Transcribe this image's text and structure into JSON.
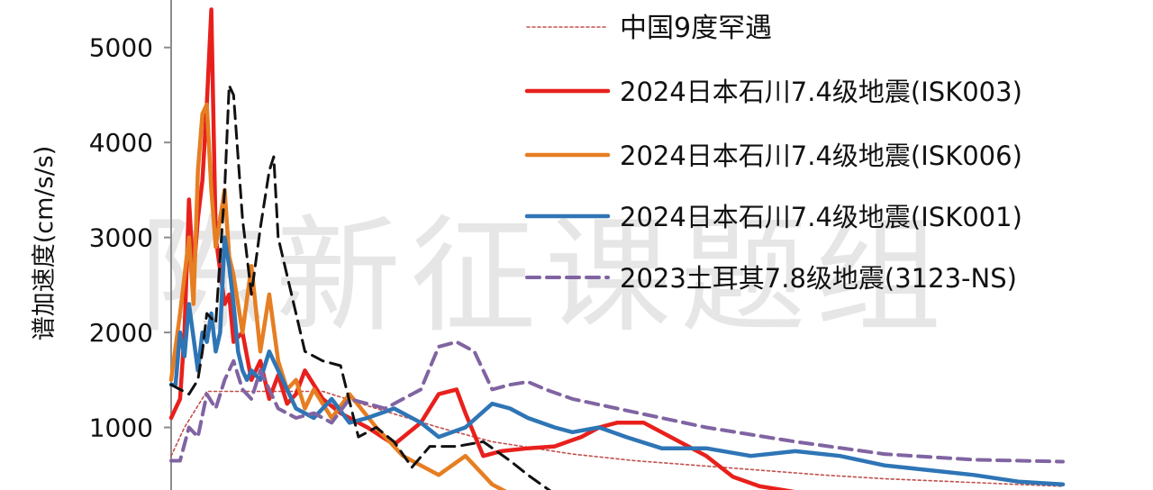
{
  "watermark": "陈新征课题组",
  "chart_data": {
    "type": "line",
    "title": "",
    "xlabel": "",
    "ylabel": "谱加速度(cm/s/s)",
    "xlim": [
      0,
      1
    ],
    "ylim": [
      0,
      5500
    ],
    "yticks": [
      "1000",
      "2000",
      "3000",
      "4000",
      "5000"
    ],
    "grid": false,
    "legend_position": "top-right",
    "series": [
      {
        "name": "中国9度罕遇",
        "color": "#c0504d",
        "style": "dotted",
        "x": [
          0.0,
          0.015,
          0.04,
          0.05,
          0.09,
          0.13,
          0.17,
          0.23,
          0.3,
          0.36,
          0.45,
          0.52,
          0.59,
          0.66,
          0.73,
          0.8,
          0.9,
          1.0
        ],
        "y": [
          700,
          1000,
          1380,
          1380,
          1380,
          1380,
          1380,
          1200,
          1000,
          850,
          720,
          650,
          600,
          550,
          500,
          460,
          420,
          380
        ]
      },
      {
        "name": "2024日本石川7.4级地震(ISK003)",
        "color": "#e8201c",
        "style": "solid",
        "x": [
          0.0,
          0.01,
          0.015,
          0.02,
          0.025,
          0.03,
          0.035,
          0.04,
          0.045,
          0.05,
          0.06,
          0.065,
          0.07,
          0.08,
          0.09,
          0.1,
          0.11,
          0.12,
          0.13,
          0.14,
          0.15,
          0.17,
          0.19,
          0.22,
          0.25,
          0.28,
          0.3,
          0.32,
          0.33,
          0.35,
          0.37,
          0.4,
          0.43,
          0.46,
          0.48,
          0.5,
          0.53,
          0.56,
          0.6,
          0.63,
          0.66,
          0.7,
          0.75,
          0.8,
          0.88,
          0.95,
          1.0
        ],
        "y": [
          1100,
          1300,
          2000,
          3400,
          2600,
          3200,
          3600,
          4400,
          5400,
          3000,
          2300,
          2400,
          1900,
          2000,
          1500,
          1700,
          1300,
          1550,
          1250,
          1350,
          1600,
          1300,
          1150,
          1000,
          820,
          1050,
          1350,
          1400,
          1150,
          700,
          750,
          780,
          800,
          900,
          1000,
          1050,
          1050,
          900,
          700,
          480,
          380,
          320,
          280,
          260,
          230,
          200,
          180
        ]
      },
      {
        "name": "2024日本石川7.4级地震(ISK006)",
        "color": "#e67e22",
        "style": "solid",
        "x": [
          0.0,
          0.01,
          0.02,
          0.025,
          0.03,
          0.035,
          0.04,
          0.045,
          0.05,
          0.06,
          0.065,
          0.07,
          0.08,
          0.09,
          0.1,
          0.11,
          0.12,
          0.13,
          0.14,
          0.15,
          0.16,
          0.18,
          0.2,
          0.23,
          0.26,
          0.3,
          0.33,
          0.36,
          0.4,
          0.45
        ],
        "y": [
          1500,
          2200,
          3000,
          2300,
          3700,
          4300,
          4400,
          3500,
          2900,
          3500,
          2800,
          2600,
          2000,
          2700,
          1800,
          2400,
          1700,
          1400,
          1500,
          1200,
          1400,
          1100,
          1350,
          1000,
          700,
          500,
          700,
          400,
          200,
          100
        ]
      },
      {
        "name": "2024日本石川7.4级地震(ISK001)",
        "color": "#2e75b6",
        "style": "solid",
        "x": [
          0.0,
          0.005,
          0.01,
          0.015,
          0.02,
          0.03,
          0.035,
          0.04,
          0.045,
          0.05,
          0.055,
          0.06,
          0.065,
          0.07,
          0.075,
          0.08,
          0.085,
          0.09,
          0.1,
          0.11,
          0.12,
          0.14,
          0.16,
          0.18,
          0.2,
          0.22,
          0.25,
          0.28,
          0.3,
          0.33,
          0.36,
          0.38,
          0.4,
          0.43,
          0.45,
          0.48,
          0.51,
          0.55,
          0.6,
          0.65,
          0.7,
          0.75,
          0.8,
          0.85,
          0.9,
          0.95,
          1.0
        ],
        "y": [
          1450,
          1450,
          2000,
          1750,
          2300,
          1600,
          2000,
          1900,
          2200,
          1800,
          2000,
          3000,
          2700,
          2300,
          1800,
          1600,
          1500,
          1600,
          1500,
          1800,
          1600,
          1200,
          1100,
          1300,
          1050,
          1100,
          1200,
          1050,
          900,
          1000,
          1250,
          1200,
          1100,
          1000,
          950,
          1000,
          900,
          780,
          780,
          700,
          750,
          700,
          600,
          550,
          500,
          430,
          400
        ]
      },
      {
        "name": "2023土耳其7.8级地震(3123-NS)",
        "color": "#8064a2",
        "style": "dashed",
        "x": [
          0.0,
          0.01,
          0.02,
          0.03,
          0.04,
          0.05,
          0.06,
          0.07,
          0.08,
          0.09,
          0.1,
          0.12,
          0.14,
          0.16,
          0.18,
          0.2,
          0.22,
          0.24,
          0.26,
          0.28,
          0.3,
          0.32,
          0.34,
          0.36,
          0.38,
          0.4,
          0.42,
          0.45,
          0.5,
          0.55,
          0.6,
          0.7,
          0.8,
          0.9,
          1.0
        ],
        "y": [
          650,
          650,
          1000,
          900,
          1350,
          1200,
          1500,
          1700,
          1400,
          1300,
          1600,
          1200,
          1100,
          1150,
          1050,
          1300,
          1250,
          1200,
          1300,
          1400,
          1850,
          1900,
          1800,
          1400,
          1450,
          1480,
          1400,
          1300,
          1200,
          1100,
          1000,
          850,
          720,
          660,
          640
        ]
      },
      {
        "name": "",
        "color": "#111111",
        "style": "dashed",
        "x": [
          0.0,
          0.01,
          0.02,
          0.03,
          0.035,
          0.04,
          0.05,
          0.06,
          0.065,
          0.07,
          0.08,
          0.09,
          0.1,
          0.11,
          0.115,
          0.12,
          0.13,
          0.15,
          0.17,
          0.19,
          0.21,
          0.23,
          0.25,
          0.27,
          0.29,
          0.32,
          0.35,
          0.38,
          0.4,
          0.43,
          0.45
        ],
        "y": [
          1450,
          1400,
          1350,
          1500,
          1800,
          2200,
          2100,
          3500,
          4600,
          4500,
          3200,
          2400,
          3100,
          3700,
          3850,
          3000,
          2600,
          1800,
          1700,
          1650,
          900,
          1000,
          850,
          580,
          800,
          800,
          850,
          650,
          500,
          300,
          150
        ]
      }
    ]
  }
}
